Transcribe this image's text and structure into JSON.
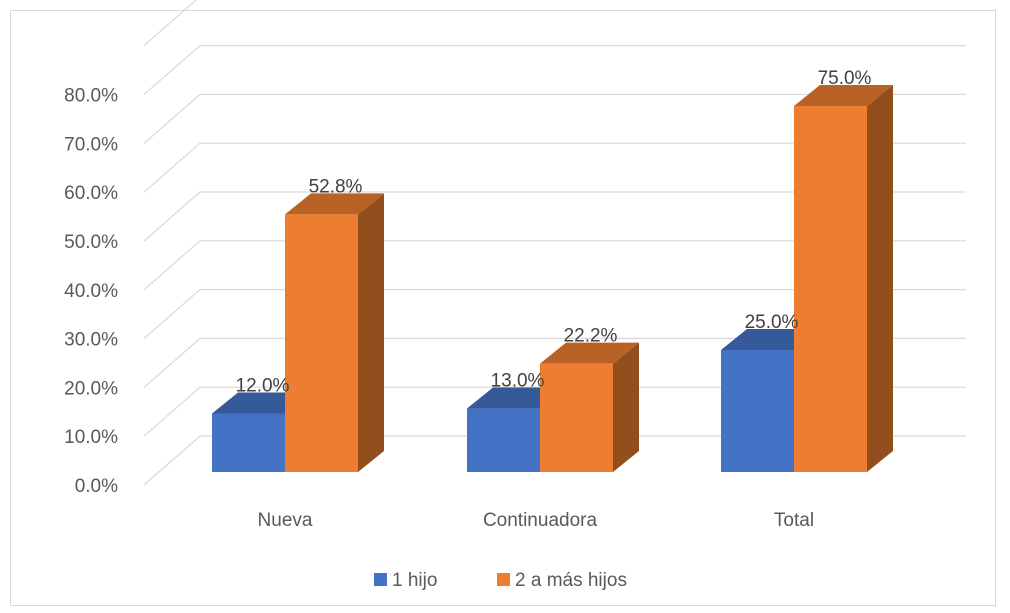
{
  "chart_data": {
    "type": "bar",
    "categories": [
      "Nueva",
      "Continuadora",
      "Total"
    ],
    "series": [
      {
        "name": "1 hijo",
        "values": [
          12.0,
          13.0,
          25.0
        ],
        "labels": [
          "12.0%",
          "13.0%",
          "25.0%"
        ],
        "color": "#4472C4"
      },
      {
        "name": "2 a más hijos",
        "values": [
          52.8,
          22.2,
          75.0
        ],
        "labels": [
          "52.8%",
          "22.2%",
          "75.0%"
        ],
        "color": "#ED7D31"
      }
    ],
    "ylim": [
      0,
      80
    ],
    "yticks": [
      "0.0%",
      "10.0%",
      "20.0%",
      "30.0%",
      "40.0%",
      "50.0%",
      "60.0%",
      "70.0%",
      "80.0%"
    ],
    "title": "",
    "xlabel": "",
    "ylabel": "",
    "grid": true,
    "legend": "bottom",
    "style": "3d-column"
  }
}
